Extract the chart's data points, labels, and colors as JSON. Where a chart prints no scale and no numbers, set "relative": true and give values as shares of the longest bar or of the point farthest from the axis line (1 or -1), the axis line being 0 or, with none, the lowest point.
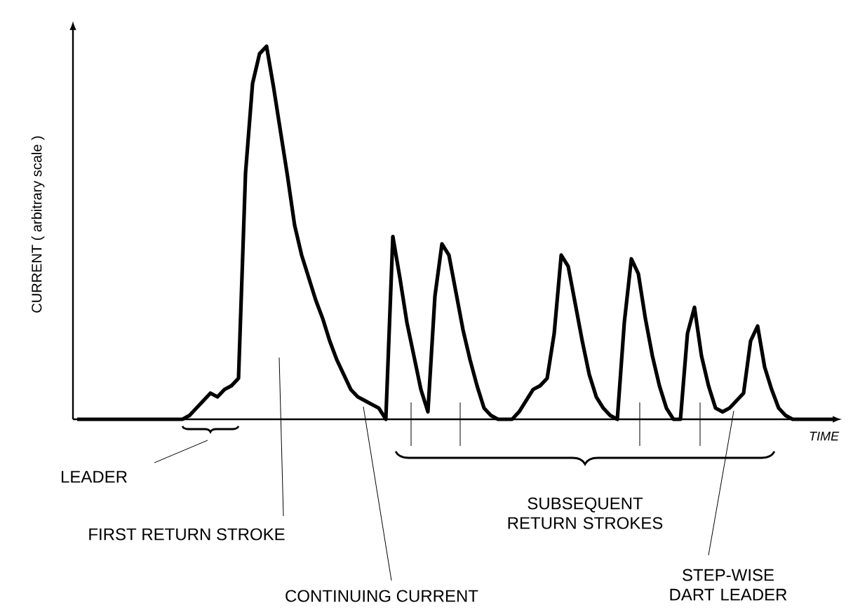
{
  "chart_data": {
    "type": "line",
    "relative": true,
    "color": "#000000",
    "xlabel": "TIME",
    "ylabel": "CURRENT ( arbitrary scale )",
    "categories": [
      null,
      null,
      null,
      null,
      null,
      null,
      null,
      null,
      null,
      null,
      null,
      null,
      null,
      null,
      null,
      null,
      null,
      null,
      null,
      null,
      null,
      null,
      null,
      null,
      null,
      null,
      null,
      null,
      null,
      null,
      null,
      null,
      null,
      null,
      null,
      null,
      null,
      null,
      null,
      null,
      null,
      null,
      null,
      null,
      null,
      null,
      null,
      null,
      null,
      null,
      null,
      null,
      null,
      null,
      null,
      null,
      null,
      null,
      null,
      null,
      null,
      null,
      null,
      null,
      null,
      null,
      null,
      null,
      null,
      null,
      null,
      null,
      null,
      null,
      null,
      null,
      null,
      null,
      null,
      null,
      null,
      null,
      null,
      null,
      null,
      null,
      null,
      null,
      null,
      null,
      null,
      null,
      null,
      null,
      null,
      null,
      null,
      null,
      null,
      null,
      null,
      null,
      null,
      null,
      null,
      null,
      null,
      null,
      null
    ],
    "values": [
      0,
      0,
      0,
      0,
      0,
      0,
      0,
      0,
      0,
      0,
      0,
      0,
      0,
      0,
      0,
      0,
      0.01,
      0.03,
      0.05,
      0.07,
      0.06,
      0.08,
      0.09,
      0.11,
      0.66,
      0.9,
      0.98,
      1.0,
      0.89,
      0.77,
      0.65,
      0.52,
      0.44,
      0.38,
      0.32,
      0.27,
      0.21,
      0.16,
      0.12,
      0.08,
      0.06,
      0.05,
      0.04,
      0.03,
      0,
      0.49,
      0.38,
      0.26,
      0.17,
      0.08,
      0.02,
      0.33,
      0.47,
      0.44,
      0.34,
      0.24,
      0.16,
      0.09,
      0.03,
      0.01,
      0,
      0,
      0,
      0.02,
      0.05,
      0.08,
      0.09,
      0.11,
      0.23,
      0.44,
      0.41,
      0.31,
      0.21,
      0.12,
      0.06,
      0.03,
      0.01,
      0,
      0.26,
      0.43,
      0.39,
      0.27,
      0.17,
      0.09,
      0.03,
      0,
      0,
      0.23,
      0.3,
      0.17,
      0.09,
      0.03,
      0.02,
      0.03,
      0.05,
      0.07,
      0.21,
      0.25,
      0.14,
      0.08,
      0.03,
      0.01,
      0,
      0,
      0,
      0,
      0,
      0,
      0
    ],
    "annotations": [
      "LEADER",
      "FIRST RETURN STROKE",
      "CONTINUING CURRENT",
      "SUBSEQUENT RETURN STROKES",
      "STEP-WISE DART LEADER"
    ]
  }
}
